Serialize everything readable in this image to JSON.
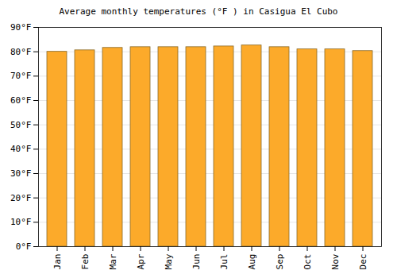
{
  "chart_data": {
    "type": "bar",
    "title": "Average monthly temperatures (°F ) in Casigua El Cubo",
    "categories": [
      "Jan",
      "Feb",
      "Mar",
      "Apr",
      "May",
      "Jun",
      "Jul",
      "Aug",
      "Sep",
      "Oct",
      "Nov",
      "Dec"
    ],
    "values": [
      80.0,
      80.6,
      81.6,
      81.9,
      81.9,
      81.9,
      82.2,
      82.6,
      81.9,
      81.0,
      81.0,
      80.3
    ],
    "color": "#fcaa2a",
    "ylim": [
      0,
      90
    ],
    "yticks": [
      {
        "value": 0,
        "label": "0°F"
      },
      {
        "value": 10,
        "label": "10°F"
      },
      {
        "value": 20,
        "label": "20°F"
      },
      {
        "value": 30,
        "label": "30°F"
      },
      {
        "value": 40,
        "label": "40°F"
      },
      {
        "value": 50,
        "label": "50°F"
      },
      {
        "value": 60,
        "label": "60°F"
      },
      {
        "value": 70,
        "label": "70°F"
      },
      {
        "value": 80,
        "label": "80°F"
      },
      {
        "value": 90,
        "label": "90°F"
      }
    ],
    "grid": true
  }
}
